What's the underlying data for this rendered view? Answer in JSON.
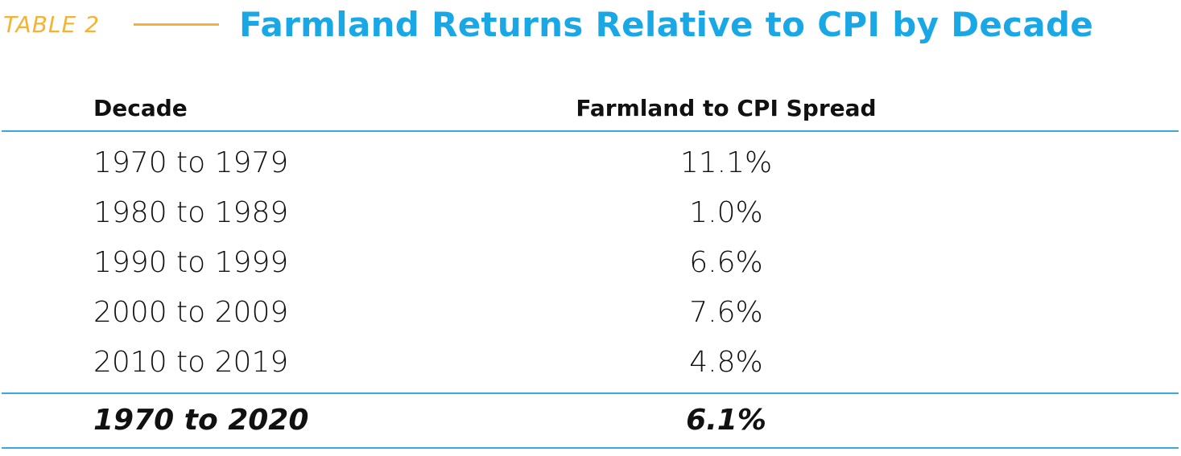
{
  "header": {
    "table_label": "TABLE 2",
    "title": "Farmland Returns Relative to CPI by Decade"
  },
  "table": {
    "columns": [
      "Decade",
      "Farmland to CPI Spread"
    ],
    "rows": [
      {
        "decade": "1970 to 1979",
        "spread": "11.1%"
      },
      {
        "decade": "1980 to 1989",
        "spread": "1.0%"
      },
      {
        "decade": "1990 to 1999",
        "spread": "6.6%"
      },
      {
        "decade": "2000 to 2009",
        "spread": "7.6%"
      },
      {
        "decade": "2010 to 2019",
        "spread": "4.8%"
      }
    ],
    "total": {
      "decade": "1970 to 2020",
      "spread": "6.1%"
    }
  },
  "colors": {
    "label_accent": "#f5b335",
    "title": "#1aa7e6",
    "rule": "#3aa8d8"
  }
}
